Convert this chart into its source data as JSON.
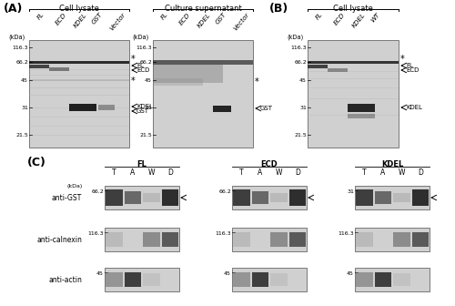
{
  "fig_width": 5.0,
  "fig_height": 3.36,
  "bg_color": "#ffffff",
  "panel_A_label": "(A)",
  "panel_B_label": "(B)",
  "panel_C_label": "(C)",
  "panel_A_title": "Cell lysate",
  "panel_A2_title": "Culture supernatant",
  "panel_B_title": "Cell lysate",
  "panel_A_cols": [
    "FL",
    "ECD",
    "KDEL",
    "GST",
    "Vector"
  ],
  "panel_B_cols": [
    "FL",
    "ECD",
    "KDEL",
    "WT"
  ],
  "panel_C_groups": [
    "FL",
    "ECD",
    "KDEL"
  ],
  "panel_C_cols": [
    "T",
    "A",
    "W",
    "D"
  ],
  "kda_label": "(kDa)",
  "anti_labels": [
    "anti-GST",
    "anti-calnexin",
    "anti-actin"
  ],
  "blot_bg": "#d0d0d0",
  "blot_edge": "#666666",
  "band_dark": "#181818",
  "band_mid": "#555555",
  "band_light": "#aaaaaa"
}
